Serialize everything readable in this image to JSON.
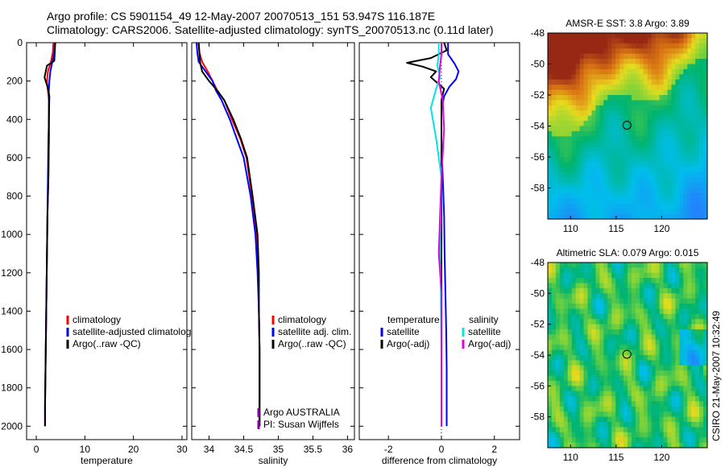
{
  "header": {
    "title_line1": "Argo profile: CS 5901154_49 12-May-2007 20070513_151 53.947S 116.187E",
    "title_line2": "Climatology: CARS2006. Satellite-adjusted climatology: synTS_20070513.nc (0.11d later)"
  },
  "colors": {
    "climatology": "#ff0000",
    "satellite": "#0000ff",
    "argo": "#000000",
    "sal_satellite": "#00e5e5",
    "sal_argo": "#e000e0",
    "owner": "#8800aa"
  },
  "chart_data": [
    {
      "type": "line",
      "id": "temperature",
      "xlabel": "temperature",
      "ylabel": "",
      "xlim": [
        -2,
        31
      ],
      "ylim": [
        2070,
        0
      ],
      "xticks": [
        0,
        10,
        20,
        30
      ],
      "xtick_labels": [
        "0",
        "10",
        "20",
        "30"
      ],
      "yticks": [
        0,
        200,
        400,
        600,
        800,
        1000,
        1200,
        1400,
        1600,
        1800,
        2000
      ],
      "ytick_labels": [
        "0",
        "200",
        "400",
        "600",
        "800",
        "1000",
        "1200",
        "1400",
        "1600",
        "1800",
        "2000"
      ],
      "legend": [
        "climatology",
        "satellite-adjusted climatology",
        "Argo(..raw -QC)"
      ],
      "series": [
        {
          "name": "climatology",
          "color": "#ff0000",
          "x": [
            3.5,
            3.4,
            3.0,
            2.4,
            2.2,
            2.4,
            2.6,
            2.6,
            2.6,
            2.5,
            2.3,
            2.2,
            2.1,
            2.0,
            1.9,
            1.8,
            1.8
          ],
          "y": [
            0,
            50,
            100,
            150,
            200,
            250,
            300,
            400,
            500,
            700,
            900,
            1100,
            1300,
            1500,
            1700,
            1900,
            2000
          ]
        },
        {
          "name": "satellite-adjusted climatology",
          "color": "#0000ff",
          "x": [
            3.8,
            3.7,
            3.3,
            2.9,
            2.7,
            2.6,
            2.6,
            2.6,
            2.5,
            2.4,
            2.3,
            2.2,
            2.1,
            2.0,
            1.9,
            1.8,
            1.8
          ],
          "y": [
            0,
            50,
            100,
            150,
            200,
            250,
            300,
            400,
            500,
            700,
            900,
            1100,
            1300,
            1500,
            1700,
            1900,
            2000
          ]
        },
        {
          "name": "Argo(..raw -QC)",
          "color": "#000000",
          "x": [
            3.9,
            3.8,
            3.7,
            2.2,
            1.7,
            2.3,
            2.7,
            2.6,
            2.6,
            2.5,
            2.3,
            2.2,
            2.1,
            2.0,
            1.9,
            1.8,
            1.8
          ],
          "y": [
            0,
            50,
            95,
            120,
            180,
            230,
            280,
            400,
            500,
            700,
            900,
            1100,
            1300,
            1500,
            1700,
            1900,
            2000
          ]
        }
      ]
    },
    {
      "type": "line",
      "id": "salinity",
      "xlabel": "salinity",
      "xlim": [
        33.75,
        36.1
      ],
      "ylim": [
        2070,
        0
      ],
      "xticks": [
        34,
        34.5,
        35,
        35.5,
        36
      ],
      "xtick_labels": [
        "34",
        "34.5",
        "35",
        "35.5",
        "36"
      ],
      "yticks": [
        0,
        200,
        400,
        600,
        800,
        1000,
        1200,
        1400,
        1600,
        1800,
        2000
      ],
      "legend": [
        "climatology",
        "satellite adj. clim.",
        "Argo(..raw -QC)"
      ],
      "owner_lines": [
        "Argo AUSTRALIA",
        "PI: Susan Wijffels"
      ],
      "series": [
        {
          "name": "climatology",
          "color": "#ff0000",
          "x": [
            33.85,
            33.86,
            33.9,
            33.98,
            34.05,
            34.12,
            34.22,
            34.33,
            34.45,
            34.54,
            34.62,
            34.69,
            34.71,
            34.72,
            34.73,
            34.73,
            34.73,
            34.73
          ],
          "y": [
            0,
            50,
            100,
            150,
            200,
            250,
            300,
            400,
            500,
            600,
            800,
            1000,
            1200,
            1400,
            1600,
            1800,
            1950,
            2000
          ]
        },
        {
          "name": "satellite adj. clim.",
          "color": "#0000ff",
          "x": [
            33.82,
            33.83,
            33.85,
            33.95,
            34.05,
            34.1,
            34.18,
            34.3,
            34.4,
            34.5,
            34.6,
            34.67,
            34.7,
            34.72,
            34.73,
            34.73,
            34.73,
            34.73
          ],
          "y": [
            0,
            50,
            100,
            150,
            200,
            250,
            300,
            400,
            500,
            600,
            800,
            1000,
            1200,
            1400,
            1600,
            1800,
            1950,
            2000
          ]
        },
        {
          "name": "Argo(..raw -QC)",
          "color": "#000000",
          "x": [
            33.85,
            33.86,
            33.87,
            33.9,
            34.0,
            34.12,
            34.22,
            34.35,
            34.46,
            34.55,
            34.63,
            34.7,
            34.72,
            34.72,
            34.73,
            34.73,
            34.73,
            34.73
          ],
          "y": [
            0,
            50,
            100,
            150,
            200,
            250,
            300,
            400,
            500,
            600,
            800,
            1000,
            1200,
            1400,
            1600,
            1800,
            1950,
            2000
          ]
        }
      ]
    },
    {
      "type": "line",
      "id": "difference",
      "xlabel": "difference from climatology",
      "xlim": [
        -3.1,
        2.95
      ],
      "ylim": [
        2070,
        0
      ],
      "xticks": [
        -2,
        0,
        2
      ],
      "xtick_labels": [
        "-2",
        "0",
        "2"
      ],
      "yticks": [
        0,
        200,
        400,
        600,
        800,
        1000,
        1200,
        1400,
        1600,
        1800,
        2000
      ],
      "legend_temperature": [
        "temperature",
        "satellite",
        "Argo(-adj)"
      ],
      "legend_salinity": [
        "salinity",
        "satellite",
        "Argo(-adj)"
      ],
      "series": [
        {
          "name": "temperature satellite",
          "color": "#0000ff",
          "x": [
            0.25,
            0.25,
            0.5,
            0.65,
            0.55,
            0.3,
            0.1,
            0.0,
            0.0,
            0.05,
            0.1,
            0.12,
            0.15,
            0.18,
            0.2,
            0.2,
            0.2
          ],
          "y": [
            0,
            60,
            110,
            150,
            190,
            230,
            280,
            350,
            500,
            700,
            900,
            1100,
            1300,
            1500,
            1700,
            1900,
            2000
          ]
        },
        {
          "name": "temperature Argo(-adj)",
          "color": "#000000",
          "x": [
            0.1,
            0.2,
            -0.4,
            -1.3,
            -0.7,
            -0.2,
            -0.4,
            0.1,
            0.0,
            0.0,
            0.0,
            0.0,
            0.0,
            0.0,
            0.0,
            0.0
          ],
          "y": [
            0,
            40,
            80,
            105,
            125,
            150,
            180,
            240,
            300,
            500,
            800,
            1100,
            1400,
            1700,
            1900,
            2000
          ]
        },
        {
          "name": "salinity satellite",
          "color": "#00e5e5",
          "x": [
            -0.1,
            -0.1,
            -0.15,
            -0.05,
            -0.2,
            -0.4,
            -0.2,
            0.0,
            -0.03,
            -0.05,
            -0.02,
            0.0,
            0.0,
            0.0
          ],
          "y": [
            0,
            60,
            120,
            180,
            240,
            340,
            500,
            700,
            900,
            1100,
            1300,
            1600,
            1900,
            2000
          ]
        },
        {
          "name": "salinity Argo(-adj)",
          "color": "#e000e0",
          "x": [
            0.0,
            0.0,
            -0.05,
            -0.1,
            0.05,
            0.1,
            0.0,
            -0.05,
            -0.1,
            0.0,
            0.0,
            0.0,
            0.0
          ],
          "y": [
            0,
            60,
            120,
            200,
            300,
            450,
            700,
            900,
            1100,
            1300,
            1500,
            1800,
            2000
          ]
        }
      ]
    },
    {
      "type": "heatmap",
      "id": "sst_map",
      "title": "AMSR-E SST: 3.8 Argo: 3.89",
      "xlim": [
        107.5,
        125
      ],
      "ylim": [
        -60,
        -48
      ],
      "xticks": [
        110,
        115,
        120
      ],
      "xtick_labels": [
        "110",
        "115",
        "120"
      ],
      "yticks": [
        -48,
        -50,
        -52,
        -54,
        -56,
        -58
      ],
      "ytick_labels": [
        "-48",
        "-50",
        "-52",
        "-54",
        "-56",
        "-58"
      ],
      "marker": {
        "lon": 116.187,
        "lat": -53.947
      }
    },
    {
      "type": "heatmap",
      "id": "sla_map",
      "title": "Altimetric SLA: 0.079 Argo: 0.015",
      "xlim": [
        107.5,
        125
      ],
      "ylim": [
        -60,
        -48
      ],
      "xticks": [
        110,
        115,
        120
      ],
      "xtick_labels": [
        "110",
        "115",
        "120"
      ],
      "yticks": [
        -48,
        -50,
        -52,
        -54,
        -56,
        -58
      ],
      "ytick_labels": [
        "-48",
        "-50",
        "-52",
        "-54",
        "-56",
        "-58"
      ],
      "marker": {
        "lon": 116.187,
        "lat": -53.947
      }
    }
  ],
  "side_stamp": "CSIRO 21-May-2007 10:32:49"
}
